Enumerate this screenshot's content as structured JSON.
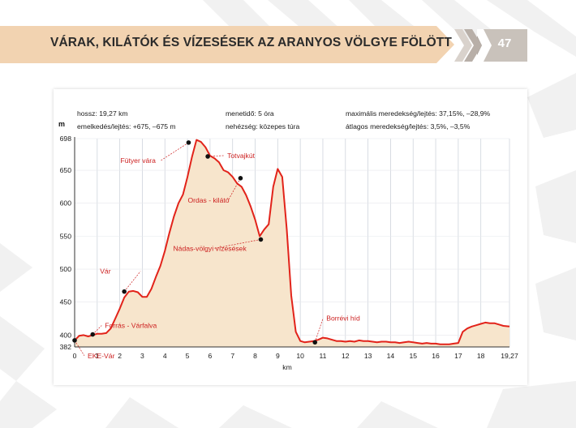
{
  "header": {
    "title": "VÁRAK, KILÁTÓK ÉS VÍZESÉSEK AZ ARANYOS VÖLGYE FÖLÖTT",
    "page_number": "47"
  },
  "colors": {
    "band": "#f2d3b1",
    "profile_line": "#e2231a",
    "profile_fill": "#f7e5cc",
    "annotation": "#cc1f1f",
    "page_box": "#c9c2bb"
  },
  "stats": {
    "length": "hossz: 19,27 km",
    "elevation": "emelkedés/lejtés: +675, –675 m",
    "duration": "menetidő: 5 óra",
    "difficulty": "nehézség: közepes túra",
    "max_grade": "maximális meredekség/lejtés: 37,15%, –28,9%",
    "avg_grade": "átlagos meredekség/lejtés: 3,5%, –3,5%"
  },
  "chart_data": {
    "type": "area",
    "title": "",
    "xlabel": "km",
    "ylabel": "m",
    "xlim": [
      0,
      19.27
    ],
    "ylim": [
      382,
      698
    ],
    "x_ticks": [
      "0",
      "1",
      "2",
      "3",
      "4",
      "5",
      "6",
      "7",
      "8",
      "9",
      "10",
      "11",
      "12",
      "13",
      "14",
      "15",
      "16",
      "17",
      "18",
      "19,27"
    ],
    "x_tick_values": [
      0,
      1,
      2,
      3,
      4,
      5,
      6,
      7,
      8,
      9,
      10,
      11,
      12,
      13,
      14,
      15,
      16,
      17,
      18,
      19.27
    ],
    "y_ticks": [
      "382",
      "400",
      "450",
      "500",
      "550",
      "600",
      "650",
      "698"
    ],
    "y_tick_values": [
      382,
      400,
      450,
      500,
      550,
      600,
      650,
      698
    ],
    "grid": "vertical",
    "series": [
      {
        "x": [
          0,
          0.2,
          0.4,
          0.6,
          0.8,
          1.0,
          1.2,
          1.4,
          1.6,
          1.8,
          2.0,
          2.2,
          2.4,
          2.6,
          2.8,
          3.0,
          3.2,
          3.4,
          3.6,
          3.8,
          4.0,
          4.2,
          4.4,
          4.6,
          4.8,
          5.0,
          5.2,
          5.4,
          5.6,
          5.8,
          6.0,
          6.2,
          6.4,
          6.6,
          6.8,
          7.0,
          7.2,
          7.4,
          7.6,
          7.8,
          8.0,
          8.2,
          8.4,
          8.6,
          8.8,
          9.0,
          9.2,
          9.4,
          9.6,
          9.8,
          10.0,
          10.2,
          10.4,
          10.6,
          10.8,
          11.0,
          11.2,
          11.4,
          11.6,
          11.8,
          12.0,
          12.2,
          12.4,
          12.6,
          12.8,
          13.0,
          13.2,
          13.4,
          13.6,
          13.8,
          14.0,
          14.2,
          14.4,
          14.6,
          14.8,
          15.0,
          15.2,
          15.4,
          15.6,
          15.8,
          16.0,
          16.2,
          16.4,
          16.6,
          16.8,
          17.0,
          17.2,
          17.4,
          17.6,
          17.8,
          18.0,
          18.2,
          18.4,
          18.6,
          18.8,
          19.0,
          19.27
        ],
        "values": [
          392,
          399,
          400,
          398,
          400,
          402,
          402,
          403,
          410,
          425,
          440,
          457,
          466,
          467,
          465,
          458,
          458,
          470,
          488,
          505,
          528,
          555,
          580,
          600,
          613,
          640,
          670,
          696,
          693,
          685,
          672,
          668,
          662,
          650,
          647,
          640,
          630,
          625,
          612,
          595,
          575,
          550,
          560,
          568,
          625,
          652,
          640,
          560,
          460,
          405,
          391,
          389,
          390,
          391,
          393,
          396,
          395,
          393,
          391,
          391,
          390,
          391,
          390,
          392,
          391,
          391,
          390,
          389,
          390,
          390,
          389,
          389,
          388,
          389,
          390,
          389,
          388,
          387,
          388,
          387,
          387,
          386,
          386,
          386,
          387,
          388,
          405,
          410,
          413,
          415,
          417,
          419,
          418,
          418,
          416,
          414,
          413
        ]
      }
    ],
    "annotations": [
      {
        "label": "EKE-Vár",
        "x": 0,
        "y": 392
      },
      {
        "label": "Forrás - Várfalva",
        "x": 0.8,
        "y": 401
      },
      {
        "label": "Vár",
        "x": 2.2,
        "y": 466
      },
      {
        "label": "Fütyer vára",
        "x": 5.05,
        "y": 692
      },
      {
        "label": "Totvajkút",
        "x": 5.9,
        "y": 671
      },
      {
        "label": "Ordas - kilátó",
        "x": 7.35,
        "y": 638
      },
      {
        "label": "Nádas-völgyi vízesések",
        "x": 8.25,
        "y": 545
      },
      {
        "label": "Borrévi híd",
        "x": 10.65,
        "y": 389
      }
    ]
  }
}
